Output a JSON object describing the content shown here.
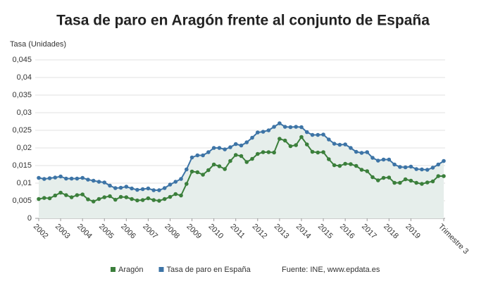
{
  "chart_data": {
    "type": "line",
    "title": "Tasa de paro en Aragón frente al conjunto de España",
    "y_label": "Tasa (Unidades)",
    "source": "Fuente: INE, www.epdata.es",
    "categories": [
      "2002",
      null,
      null,
      null,
      "2003",
      null,
      null,
      null,
      "2004",
      null,
      null,
      null,
      "2005",
      null,
      null,
      null,
      "2006",
      null,
      null,
      null,
      "2007",
      null,
      null,
      null,
      "2008",
      null,
      null,
      null,
      "2009",
      null,
      null,
      null,
      "2010",
      null,
      null,
      null,
      "2011",
      null,
      null,
      null,
      "2012",
      null,
      null,
      null,
      "2013",
      null,
      null,
      null,
      "2014",
      null,
      null,
      null,
      "2015",
      null,
      null,
      null,
      "2016",
      null,
      null,
      null,
      "2017",
      null,
      null,
      null,
      "2018",
      null,
      null,
      null,
      "2019",
      null,
      null,
      null,
      null,
      null,
      "Trimestre 3"
    ],
    "series": [
      {
        "name": "Aragón",
        "color": "#3b7f3b",
        "values": [
          0.0055,
          0.0058,
          0.0057,
          0.0065,
          0.0073,
          0.0066,
          0.006,
          0.0066,
          0.0068,
          0.0054,
          0.0048,
          0.0055,
          0.006,
          0.0063,
          0.0053,
          0.0061,
          0.006,
          0.0055,
          0.0051,
          0.0052,
          0.0057,
          0.0052,
          0.005,
          0.0055,
          0.0061,
          0.0069,
          0.0065,
          0.0098,
          0.0133,
          0.0131,
          0.0124,
          0.0137,
          0.0153,
          0.0148,
          0.014,
          0.0163,
          0.018,
          0.0177,
          0.016,
          0.0169,
          0.0183,
          0.0188,
          0.0188,
          0.0187,
          0.0226,
          0.0221,
          0.0205,
          0.0208,
          0.0231,
          0.021,
          0.0189,
          0.0187,
          0.0188,
          0.0168,
          0.0151,
          0.0149,
          0.0155,
          0.0154,
          0.0149,
          0.0138,
          0.0134,
          0.0117,
          0.0108,
          0.0115,
          0.0116,
          0.0101,
          0.0101,
          0.0111,
          0.0107,
          0.0101,
          0.0098,
          0.0102,
          0.0105,
          0.012,
          0.012
        ]
      },
      {
        "name": "Tasa de paro en España",
        "color": "#3d74a6",
        "values": [
          0.0115,
          0.0112,
          0.0114,
          0.0116,
          0.0119,
          0.0113,
          0.0113,
          0.0113,
          0.0115,
          0.011,
          0.0107,
          0.0104,
          0.0102,
          0.0093,
          0.0086,
          0.0087,
          0.009,
          0.0085,
          0.0081,
          0.0083,
          0.0085,
          0.008,
          0.008,
          0.0086,
          0.0096,
          0.0104,
          0.0112,
          0.0139,
          0.0173,
          0.0179,
          0.0179,
          0.0188,
          0.02,
          0.02,
          0.0196,
          0.0202,
          0.0211,
          0.0207,
          0.0216,
          0.0229,
          0.0244,
          0.0246,
          0.025,
          0.026,
          0.027,
          0.026,
          0.0259,
          0.026,
          0.0259,
          0.0245,
          0.0237,
          0.0237,
          0.0238,
          0.0224,
          0.0212,
          0.0209,
          0.021,
          0.02,
          0.0189,
          0.0186,
          0.0188,
          0.0172,
          0.0164,
          0.0167,
          0.0167,
          0.0153,
          0.0146,
          0.0145,
          0.0147,
          0.014,
          0.0139,
          0.0138,
          0.0144,
          0.0153,
          0.0163
        ]
      }
    ],
    "ylim": [
      0,
      0.045
    ],
    "yticks": [
      0,
      {
        "value": 0.005,
        "label": "0,005"
      },
      {
        "value": 0.01,
        "label": "0,01"
      },
      {
        "value": 0.015,
        "label": "0,015"
      },
      {
        "value": 0.02,
        "label": "0,02"
      },
      {
        "value": 0.025,
        "label": "0,025"
      },
      {
        "value": 0.03,
        "label": "0,03"
      },
      {
        "value": 0.035,
        "label": "0,035"
      },
      {
        "value": 0.04,
        "label": "0,04"
      },
      {
        "value": 0.045,
        "label": "0,045"
      }
    ],
    "grid": true,
    "area_fill": "#e6eeeb"
  }
}
